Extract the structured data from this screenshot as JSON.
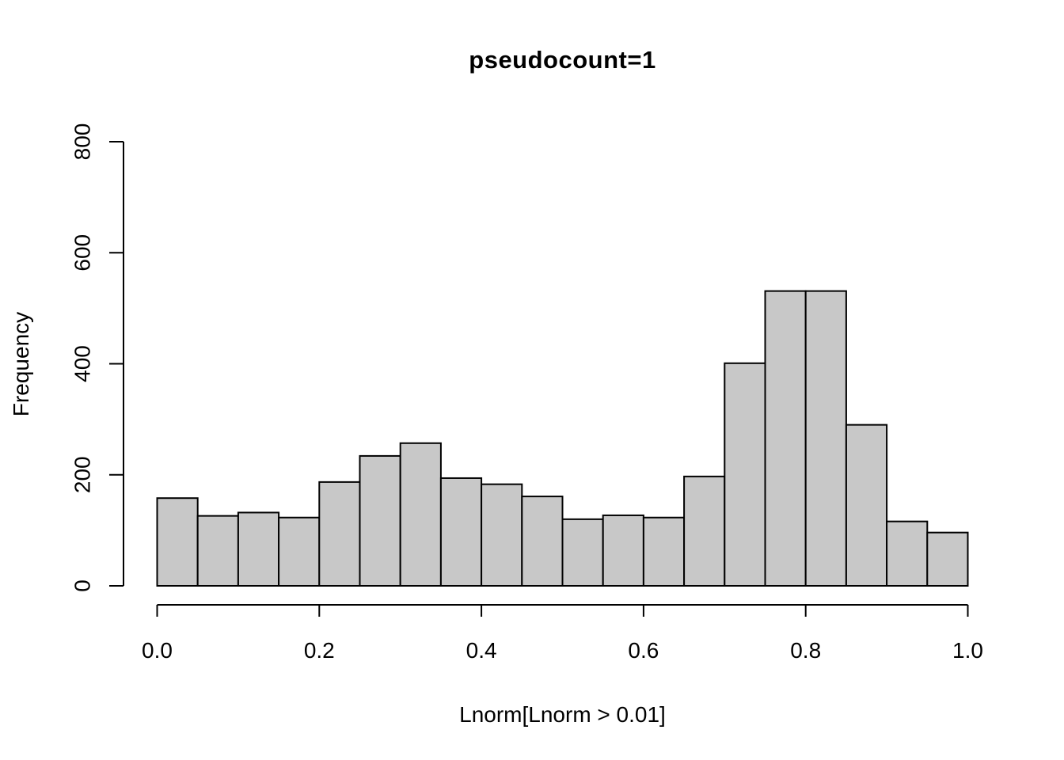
{
  "chart_data": {
    "type": "bar",
    "variant": "histogram",
    "title": "pseudocount=1",
    "xlabel": "Lnorm[Lnorm > 0.01]",
    "ylabel": "Frequency",
    "bin_width": 0.05,
    "bin_edges": [
      0,
      0.05,
      0.1,
      0.15,
      0.2,
      0.25,
      0.3,
      0.35,
      0.4,
      0.45,
      0.5,
      0.55,
      0.6,
      0.65,
      0.7,
      0.75,
      0.8,
      0.85,
      0.9,
      0.95,
      1.0
    ],
    "values": [
      158,
      126,
      132,
      123,
      187,
      234,
      257,
      194,
      183,
      161,
      120,
      127,
      123,
      197,
      401,
      531,
      531,
      290,
      116,
      96
    ],
    "x_tick_values": [
      0.0,
      0.2,
      0.4,
      0.6,
      0.8,
      1.0
    ],
    "x_tick_labels": [
      "0.0",
      "0.2",
      "0.4",
      "0.6",
      "0.8",
      "1.0"
    ],
    "y_tick_values": [
      0,
      200,
      400,
      600,
      800
    ],
    "y_tick_labels": [
      "0",
      "200",
      "400",
      "600",
      "800"
    ],
    "xlim": [
      0.0,
      1.0
    ],
    "ylim": [
      0,
      800
    ],
    "grid": false,
    "legend": null,
    "colors": {
      "bar_fill": "#c8c8c8",
      "bar_stroke": "#000000",
      "axis": "#000000",
      "text": "#000000",
      "background": "#ffffff"
    }
  }
}
